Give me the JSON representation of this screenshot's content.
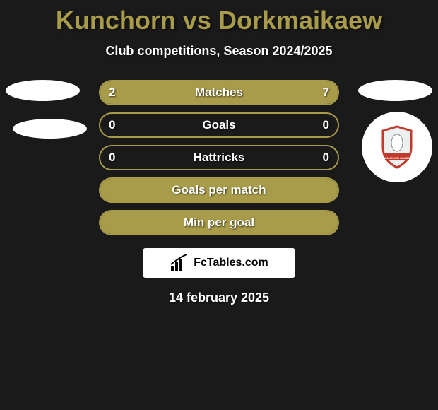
{
  "title": "Kunchorn vs Dorkmaikaew",
  "subtitle": "Club competitions, Season 2024/2025",
  "stats": [
    {
      "label": "Matches",
      "left_value": "2",
      "right_value": "7",
      "left_fill_pct": 22,
      "right_fill_pct": 78,
      "show_values": true,
      "fill_mode": "split"
    },
    {
      "label": "Goals",
      "left_value": "0",
      "right_value": "0",
      "left_fill_pct": 0,
      "right_fill_pct": 0,
      "show_values": true,
      "fill_mode": "none"
    },
    {
      "label": "Hattricks",
      "left_value": "0",
      "right_value": "0",
      "left_fill_pct": 0,
      "right_fill_pct": 0,
      "show_values": true,
      "fill_mode": "none"
    },
    {
      "label": "Goals per match",
      "left_value": "",
      "right_value": "",
      "left_fill_pct": 0,
      "right_fill_pct": 0,
      "show_values": false,
      "fill_mode": "full"
    },
    {
      "label": "Min per goal",
      "left_value": "",
      "right_value": "",
      "left_fill_pct": 0,
      "right_fill_pct": 0,
      "show_values": false,
      "fill_mode": "full"
    }
  ],
  "footer": {
    "brand": "FcTables.com"
  },
  "date": "14 february 2025",
  "colors": {
    "background": "#1a1a1a",
    "accent": "#a89c4a",
    "text_light": "#ffffff",
    "badge_bg": "#ffffff",
    "shield_border": "#c0392b",
    "shield_fill": "#ecf0f1"
  }
}
